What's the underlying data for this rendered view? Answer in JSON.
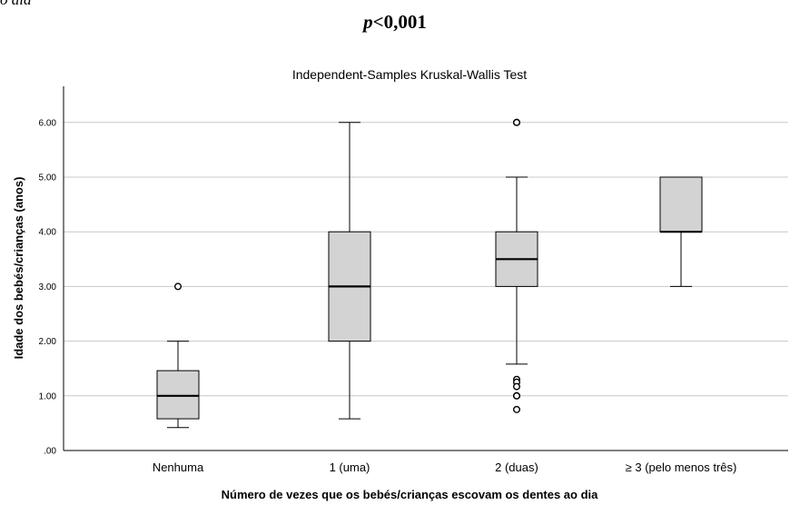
{
  "header": {
    "corner_fragment": "o dia",
    "p_symbol": "p",
    "p_rest": "<0,001"
  },
  "chart_data": {
    "type": "boxplot",
    "title": "Independent-Samples Kruskal-Wallis Test",
    "xlabel": "Número de vezes que os bebés/crianças escovam os dentes ao dia",
    "ylabel": "Idade dos bebés/crianças (anos)",
    "ylim": [
      0,
      6.7
    ],
    "yticks": [
      0,
      1,
      2,
      3,
      4,
      5,
      6
    ],
    "ytick_labels": [
      ".00",
      "1.00",
      "2.00",
      "3.00",
      "4.00",
      "5.00",
      "6.00"
    ],
    "grid": true,
    "categories": [
      "Nenhuma",
      "1 (uma)",
      "2 (duas)",
      "≥ 3 (pelo menos três)"
    ],
    "boxes": [
      {
        "category": "Nenhuma",
        "whisker_low": 0.42,
        "q1": 0.58,
        "median": 1.0,
        "q3": 1.46,
        "whisker_high": 2.0,
        "outliers": [
          3.0
        ]
      },
      {
        "category": "1 (uma)",
        "whisker_low": 0.58,
        "q1": 2.0,
        "median": 3.0,
        "q3": 4.0,
        "whisker_high": 6.0,
        "outliers": []
      },
      {
        "category": "2 (duas)",
        "whisker_low": 1.58,
        "q1": 3.0,
        "median": 3.5,
        "q3": 4.0,
        "whisker_high": 5.0,
        "outliers": [
          6.0,
          6.0,
          1.3,
          1.25,
          1.17,
          1.0,
          1.0,
          0.75
        ]
      },
      {
        "category": "≥ 3 (pelo menos três)",
        "whisker_low": 3.0,
        "q1": 4.0,
        "median": 4.0,
        "q3": 5.0,
        "whisker_high": 5.0,
        "outliers": []
      }
    ],
    "colors": {
      "box_fill": "#d3d3d3",
      "stroke": "#000000",
      "grid": "#c8c8c8"
    }
  }
}
